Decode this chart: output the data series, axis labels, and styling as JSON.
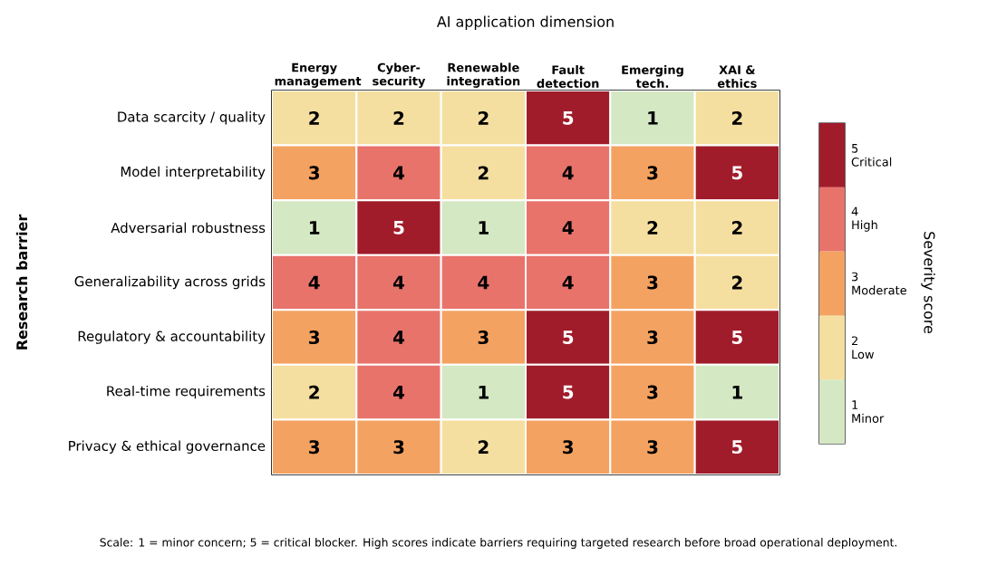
{
  "chart_data": {
    "type": "heatmap",
    "xlabel": "AI application dimension",
    "ylabel": "Research barrier",
    "clabel": "Severity score",
    "categories": [
      "Energy management",
      "Cyber-security",
      "Renewable integration",
      "Fault detection",
      "Emerging tech.",
      "XAI & ethics"
    ],
    "y_categories": [
      "Data scarcity / quality",
      "Model interpretability",
      "Adversarial robustness",
      "Generalizability across grids",
      "Regulatory & accountability",
      "Real-time requirements",
      "Privacy & ethical governance"
    ],
    "cells": [
      [
        2,
        2,
        2,
        5,
        1,
        2
      ],
      [
        3,
        4,
        2,
        4,
        3,
        5
      ],
      [
        1,
        5,
        1,
        4,
        2,
        2
      ],
      [
        4,
        4,
        4,
        4,
        3,
        2
      ],
      [
        3,
        4,
        3,
        5,
        3,
        5
      ],
      [
        2,
        4,
        1,
        5,
        3,
        1
      ],
      [
        3,
        3,
        2,
        3,
        3,
        5
      ]
    ],
    "colors": [
      "#d4e8c4",
      "#f5dfa0",
      "#f4a261",
      "#e8736b",
      "#a01c2a"
    ],
    "clim": [
      0.5,
      5.5
    ],
    "cticks": [
      {
        "value": 1,
        "label": "1 Minor"
      },
      {
        "value": 2,
        "label": "2 Low"
      },
      {
        "value": 3,
        "label": "3 Moderate"
      },
      {
        "value": 4,
        "label": "4 High"
      },
      {
        "value": 5,
        "label": "5 Critical"
      }
    ],
    "data_labels": true,
    "annotations": [
      "Scale: 1 = minor concern; 5 = critical blocker. High scores indicate barriers requiring targeted research before broad operational deployment."
    ]
  }
}
